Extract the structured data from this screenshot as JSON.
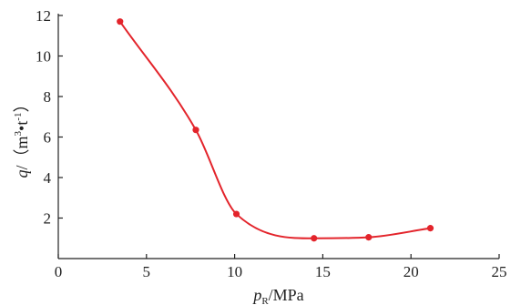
{
  "chart_data": {
    "type": "line",
    "title": "",
    "xlabel": {
      "symbol": "p",
      "subscript": "R",
      "unit": "/MPa"
    },
    "ylabel": {
      "symbol": "q",
      "unit_open": "/（m",
      "unit_sup1": "3",
      "unit_mid": "•t",
      "unit_sup2": "-1",
      "unit_close": "）"
    },
    "xlim": [
      0,
      25
    ],
    "ylim": [
      0,
      12
    ],
    "xticks": [
      0,
      5,
      10,
      15,
      20,
      25
    ],
    "yticks": [
      2,
      4,
      6,
      8,
      10,
      12
    ],
    "grid": false,
    "legend": "none",
    "color": "#e3242b",
    "series": [
      {
        "smooth": true,
        "points": [
          {
            "x": 3.5,
            "y": 11.7
          },
          {
            "x": 7.8,
            "y": 6.35
          },
          {
            "x": 10.1,
            "y": 2.2
          },
          {
            "x": 14.5,
            "y": 1.0
          },
          {
            "x": 17.6,
            "y": 1.05
          },
          {
            "x": 21.1,
            "y": 1.5
          }
        ]
      }
    ]
  }
}
